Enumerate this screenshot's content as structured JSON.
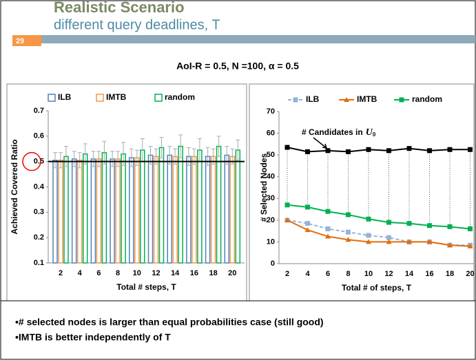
{
  "slide": {
    "title": "Realistic Scenario",
    "subtitle": "different query deadlines, T",
    "number": "29",
    "caption": "AoI-R  = 0.5, N =100, α = 0.5",
    "bullets": [
      "•# selected nodes is larger than equal probabilities case (still good)",
      "•IMTB is better independently of T"
    ]
  },
  "chart_data": [
    {
      "type": "bar",
      "xlabel": "Total  # steps, T",
      "ylabel": "Achieved Covered Ratio",
      "categories": [
        "2",
        "4",
        "6",
        "8",
        "10",
        "12",
        "14",
        "16",
        "18",
        "20"
      ],
      "series": [
        {
          "name": "ILB",
          "color": "#4f81bd",
          "values": [
            0.505,
            0.51,
            0.51,
            0.51,
            0.515,
            0.525,
            0.525,
            0.52,
            0.52,
            0.525
          ],
          "errors": [
            0.03,
            0.03,
            0.03,
            0.03,
            0.035,
            0.035,
            0.035,
            0.035,
            0.035,
            0.035
          ]
        },
        {
          "name": "IMTB",
          "color": "#f79646",
          "values": [
            0.505,
            0.505,
            0.51,
            0.51,
            0.515,
            0.52,
            0.52,
            0.52,
            0.52,
            0.52
          ],
          "errors": [
            0.03,
            0.03,
            0.03,
            0.03,
            0.03,
            0.03,
            0.03,
            0.03,
            0.03,
            0.03
          ]
        },
        {
          "name": "random",
          "color": "#00b050",
          "values": [
            0.52,
            0.53,
            0.535,
            0.53,
            0.545,
            0.555,
            0.56,
            0.545,
            0.56,
            0.545
          ],
          "errors": [
            0.04,
            0.04,
            0.045,
            0.045,
            0.045,
            0.04,
            0.045,
            0.045,
            0.04,
            0.04
          ]
        }
      ],
      "reference_line": 0.5,
      "reference_label": "0.5",
      "ylim": [
        0.1,
        0.7
      ],
      "yticks": [
        0.1,
        0.2,
        0.3,
        0.4,
        0.5,
        0.6,
        0.7
      ],
      "legend": "top"
    },
    {
      "type": "line",
      "xlabel": "Total # of  steps, T",
      "ylabel": "# Selected  Nodes",
      "categories": [
        "2",
        "4",
        "6",
        "8",
        "10",
        "12",
        "14",
        "16",
        "18",
        "20"
      ],
      "series": [
        {
          "name": "ILB",
          "color": "#95b3d7",
          "dash": true,
          "marker": "square",
          "values": [
            20,
            18.5,
            16,
            14.5,
            13,
            12,
            10,
            10,
            8.5,
            8.5
          ]
        },
        {
          "name": "IMTB",
          "color": "#e46c0a",
          "marker": "triangle",
          "values": [
            20,
            15.5,
            12.5,
            11,
            10,
            10,
            10,
            10,
            8.5,
            8
          ]
        },
        {
          "name": "random",
          "color": "#00b050",
          "marker": "square",
          "values": [
            27,
            26,
            24,
            22.5,
            20.5,
            19,
            18.5,
            17.5,
            17,
            16
          ]
        },
        {
          "color": "#000000",
          "marker": "square",
          "values": [
            53.5,
            51.5,
            52,
            51.5,
            52.5,
            52,
            53,
            52,
            52.5,
            52.5
          ]
        }
      ],
      "annotation": {
        "text": "# Candidates  in",
        "var": "U",
        "sub": "0"
      },
      "ylim": [
        0,
        70
      ],
      "yticks": [
        0,
        10,
        20,
        30,
        40,
        50,
        60,
        70
      ],
      "legend": "top"
    }
  ]
}
